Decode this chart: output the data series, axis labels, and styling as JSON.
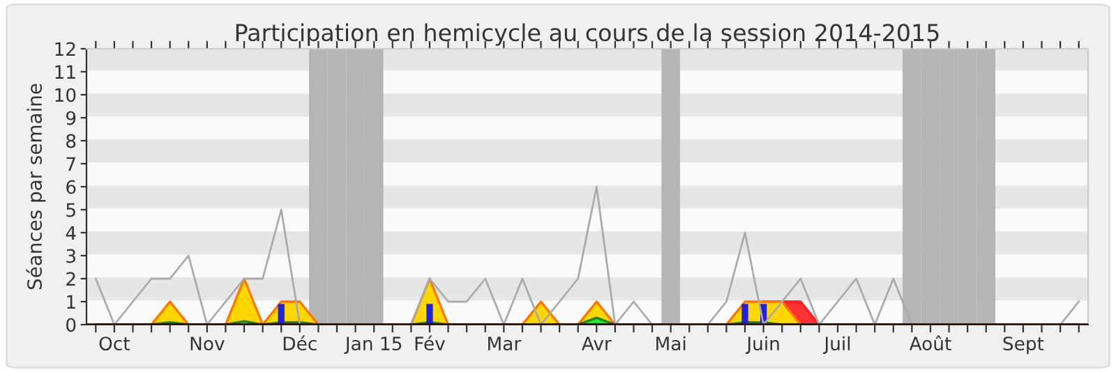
{
  "chart_data": {
    "type": "line",
    "title": "Participation en hemicycle au cours de la session 2014-2015",
    "ylabel": "Séances par semaine",
    "categories": [
      null,
      "Oct",
      null,
      null,
      null,
      null,
      "Nov",
      null,
      null,
      null,
      null,
      "Déc",
      null,
      null,
      null,
      "Jan 15",
      null,
      null,
      "Fév",
      null,
      null,
      null,
      "Mar",
      null,
      null,
      null,
      null,
      "Avr",
      null,
      null,
      null,
      "Mai",
      null,
      null,
      null,
      null,
      "Juin",
      null,
      null,
      null,
      "Juil",
      null,
      null,
      null,
      null,
      "Août",
      null,
      null,
      null,
      null,
      "Sept",
      null,
      null,
      null
    ],
    "series": [
      {
        "type": "area",
        "color": "#ff3333",
        "values": [
          0,
          0,
          0,
          0,
          0,
          0,
          0,
          0,
          0,
          0,
          0,
          0,
          0,
          0,
          0,
          0,
          0,
          0,
          0,
          0,
          0,
          0,
          0,
          0,
          0,
          0,
          0,
          0,
          0,
          0,
          0,
          0,
          0,
          0,
          0,
          0,
          1,
          1,
          1,
          0,
          0,
          0,
          0,
          0,
          0,
          0,
          0,
          0,
          0,
          0,
          0,
          0,
          0,
          0
        ]
      },
      {
        "type": "area",
        "color": "#ffd700",
        "values": [
          0,
          0,
          0,
          0,
          1,
          0,
          0,
          0,
          2,
          0,
          1,
          1,
          0,
          0,
          0,
          0,
          0,
          0,
          2,
          0,
          0,
          0,
          0,
          0,
          1,
          0,
          0,
          1,
          0,
          0,
          0,
          0,
          0,
          0,
          0,
          1,
          1,
          1,
          0,
          0,
          0,
          0,
          0,
          0,
          0,
          0,
          0,
          0,
          0,
          0,
          0,
          0,
          0,
          0
        ]
      },
      {
        "type": "area",
        "color": "#22ee22",
        "values": [
          0,
          0,
          0,
          0,
          0.1,
          0,
          0,
          0,
          0.15,
          0,
          0.1,
          0.1,
          0,
          0,
          0,
          0,
          0,
          0,
          0.1,
          0,
          0,
          0,
          0,
          0,
          0,
          0,
          0,
          0.3,
          0,
          0,
          0,
          0,
          0,
          0,
          0,
          0.1,
          0.1,
          0,
          0,
          0,
          0,
          0,
          0,
          0,
          0,
          0,
          0,
          0,
          0,
          0,
          0,
          0,
          0,
          0
        ]
      },
      {
        "type": "bar",
        "color": "#2222dd",
        "values": [
          null,
          null,
          null,
          null,
          null,
          null,
          null,
          null,
          null,
          null,
          0.9,
          null,
          null,
          null,
          null,
          null,
          null,
          null,
          0.9,
          null,
          null,
          null,
          null,
          null,
          null,
          null,
          null,
          null,
          null,
          null,
          null,
          null,
          null,
          null,
          null,
          0.9,
          0.9,
          null,
          null,
          null,
          null,
          null,
          null,
          null,
          null,
          null,
          null,
          null,
          null,
          null,
          null,
          null,
          null,
          null
        ]
      },
      {
        "color": "#aaaaaa",
        "values": [
          2,
          0,
          1,
          2,
          2,
          3,
          0,
          1,
          2,
          2,
          5,
          0,
          0,
          0,
          0,
          0,
          0,
          0,
          2,
          1,
          1,
          2,
          0,
          2,
          0,
          1,
          2,
          6,
          0,
          1,
          0,
          0,
          0,
          0,
          1,
          4,
          0,
          1,
          2,
          0,
          1,
          2,
          0,
          2,
          0,
          0,
          0,
          0,
          0,
          0,
          0,
          0,
          0,
          1
        ]
      }
    ],
    "ylim": [
      0,
      12
    ],
    "yticks": [
      0,
      1,
      2,
      3,
      4,
      5,
      6,
      7,
      8,
      9,
      10,
      11,
      12
    ]
  }
}
